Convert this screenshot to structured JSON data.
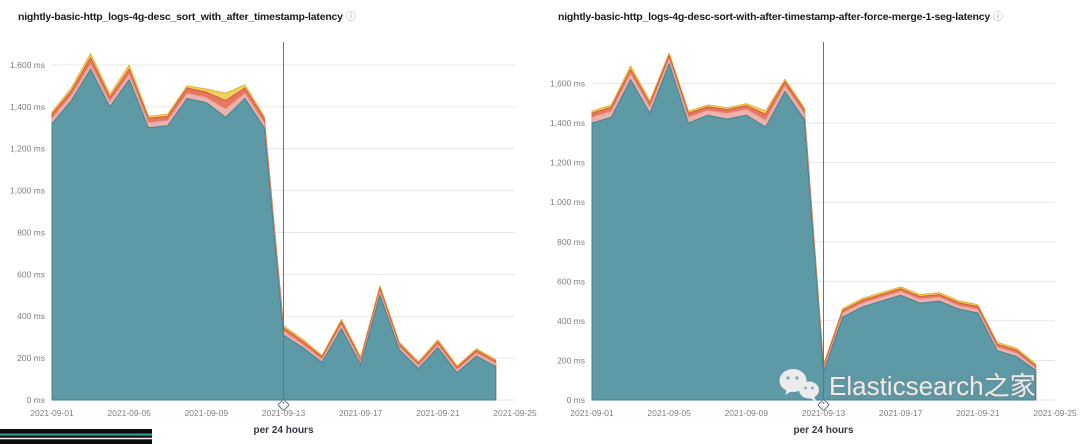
{
  "charts": [
    {
      "title": "nightly-basic-http_logs-4g-desc_sort_with_after_timestamp-latency",
      "info_icon": "ⓘ"
    },
    {
      "title": "nightly-basic-http_logs-4g-desc-sort-with-after-timestamp-after-force-merge-1-seg-latency",
      "info_icon": "ⓘ"
    }
  ],
  "watermark": {
    "icon": "wechat-icon",
    "text": "Elasticsearch之家"
  },
  "chart_data": [
    {
      "type": "area",
      "title": "nightly-basic-http_logs-4g-desc_sort_with_after_timestamp-latency",
      "xlabel": "per 24 hours",
      "ylabel": "",
      "ylim": [
        0,
        1700
      ],
      "grid": true,
      "legend": "none",
      "y_ticks": [
        0,
        200,
        400,
        600,
        800,
        1000,
        1200,
        1400,
        1600
      ],
      "y_tick_labels": [
        "0 ms",
        "200 ms",
        "400 ms",
        "600 ms",
        "800 ms",
        "1,000 ms",
        "1,200 ms",
        "1,400 ms",
        "1,600 ms"
      ],
      "x": [
        "2021-09-01",
        "2021-09-02",
        "2021-09-03",
        "2021-09-04",
        "2021-09-05",
        "2021-09-06",
        "2021-09-07",
        "2021-09-08",
        "2021-09-09",
        "2021-09-10",
        "2021-09-11",
        "2021-09-12",
        "2021-09-13",
        "2021-09-14",
        "2021-09-15",
        "2021-09-16",
        "2021-09-17",
        "2021-09-18",
        "2021-09-19",
        "2021-09-20",
        "2021-09-21",
        "2021-09-22",
        "2021-09-23",
        "2021-09-24"
      ],
      "x_tick_labels": [
        "2021-09-01",
        "2021-09-05",
        "2021-09-09",
        "2021-09-13",
        "2021-09-17",
        "2021-09-21",
        "2021-09-25"
      ],
      "x_tick_indices": [
        0,
        4,
        8,
        12,
        16,
        20,
        24
      ],
      "annotation": {
        "date": "2021-09-13",
        "index": 12,
        "style": "vertical-line-with-tag"
      },
      "series": [
        {
          "name": "teal-area",
          "fill": "#5E99A6",
          "stroke": "#47828F",
          "values": [
            1320,
            1430,
            1580,
            1400,
            1530,
            1300,
            1310,
            1440,
            1420,
            1350,
            1440,
            1300,
            310,
            250,
            180,
            340,
            170,
            500,
            240,
            150,
            250,
            130,
            210,
            160
          ]
        },
        {
          "name": "pink-band",
          "fill": "#EBB3AE",
          "stroke": "#E39793",
          "values": [
            1345,
            1455,
            1605,
            1425,
            1555,
            1325,
            1335,
            1465,
            1445,
            1390,
            1465,
            1325,
            330,
            265,
            195,
            360,
            185,
            520,
            255,
            165,
            265,
            145,
            225,
            175
          ]
        },
        {
          "name": "red-band",
          "fill": "#E8755D",
          "stroke": "#D95B3F",
          "values": [
            1365,
            1475,
            1635,
            1445,
            1580,
            1345,
            1355,
            1490,
            1470,
            1430,
            1490,
            1345,
            345,
            280,
            205,
            375,
            195,
            535,
            268,
            175,
            278,
            155,
            237,
            185
          ]
        },
        {
          "name": "yellow-band",
          "fill": "#EFCE62",
          "stroke": "#E0B631",
          "values": [
            1375,
            1490,
            1655,
            1460,
            1600,
            1355,
            1365,
            1500,
            1485,
            1465,
            1505,
            1355,
            355,
            290,
            213,
            385,
            205,
            545,
            276,
            183,
            288,
            163,
            245,
            193
          ]
        }
      ]
    },
    {
      "type": "area",
      "title": "nightly-basic-http_logs-4g-desc-sort-with-after-timestamp-after-force-merge-1-seg-latency",
      "xlabel": "per 24 hours",
      "ylabel": "",
      "ylim": [
        0,
        1800
      ],
      "grid": true,
      "legend": "none",
      "y_ticks": [
        0,
        200,
        400,
        600,
        800,
        1000,
        1200,
        1400,
        1600
      ],
      "y_tick_labels": [
        "0 ms",
        "200 ms",
        "400 ms",
        "600 ms",
        "800 ms",
        "1,000 ms",
        "1,200 ms",
        "1,400 ms",
        "1,600 ms"
      ],
      "x": [
        "2021-09-01",
        "2021-09-02",
        "2021-09-03",
        "2021-09-04",
        "2021-09-05",
        "2021-09-06",
        "2021-09-07",
        "2021-09-08",
        "2021-09-09",
        "2021-09-10",
        "2021-09-11",
        "2021-09-12",
        "2021-09-13",
        "2021-09-14",
        "2021-09-15",
        "2021-09-16",
        "2021-09-17",
        "2021-09-18",
        "2021-09-19",
        "2021-09-20",
        "2021-09-21",
        "2021-09-22",
        "2021-09-23",
        "2021-09-24"
      ],
      "x_tick_labels": [
        "2021-09-01",
        "2021-09-05",
        "2021-09-09",
        "2021-09-13",
        "2021-09-17",
        "2021-09-21",
        "2021-09-25"
      ],
      "x_tick_indices": [
        0,
        4,
        8,
        12,
        16,
        20,
        24
      ],
      "annotation": {
        "date": "2021-09-13",
        "index": 12,
        "style": "vertical-line-with-tag"
      },
      "series": [
        {
          "name": "teal-area",
          "fill": "#5E99A6",
          "stroke": "#47828F",
          "values": [
            1400,
            1430,
            1620,
            1450,
            1700,
            1400,
            1440,
            1420,
            1440,
            1380,
            1560,
            1420,
            140,
            420,
            470,
            500,
            530,
            490,
            500,
            460,
            440,
            250,
            220,
            150
          ]
        },
        {
          "name": "pink-band",
          "fill": "#EBB3AE",
          "stroke": "#E39793",
          "values": [
            1430,
            1460,
            1650,
            1480,
            1725,
            1430,
            1465,
            1450,
            1470,
            1415,
            1590,
            1450,
            158,
            440,
            490,
            520,
            550,
            510,
            520,
            478,
            458,
            268,
            238,
            163
          ]
        },
        {
          "name": "red-band",
          "fill": "#E8755D",
          "stroke": "#D95B3F",
          "values": [
            1450,
            1480,
            1672,
            1500,
            1742,
            1450,
            1482,
            1468,
            1488,
            1445,
            1610,
            1468,
            170,
            453,
            503,
            533,
            562,
            523,
            533,
            492,
            472,
            282,
            252,
            173
          ]
        },
        {
          "name": "yellow-band",
          "fill": "#EFCE62",
          "stroke": "#E0B631",
          "values": [
            1460,
            1492,
            1690,
            1512,
            1755,
            1460,
            1492,
            1478,
            1498,
            1462,
            1622,
            1478,
            180,
            463,
            513,
            543,
            572,
            533,
            543,
            502,
            482,
            292,
            262,
            183
          ]
        }
      ]
    }
  ]
}
